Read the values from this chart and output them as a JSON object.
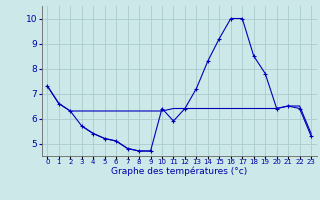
{
  "xlabel": "Graphe des températures (°c)",
  "background_color": "#cce8e8",
  "grid_color": "#aacccc",
  "line_color": "#0000bb",
  "x_hours": [
    0,
    1,
    2,
    3,
    4,
    5,
    6,
    7,
    8,
    9,
    10,
    11,
    12,
    13,
    14,
    15,
    16,
    17,
    18,
    19,
    20,
    21,
    22,
    23
  ],
  "line1": [
    7.3,
    6.6,
    6.3,
    5.7,
    5.4,
    5.2,
    5.1,
    4.8,
    4.7,
    4.7,
    6.4,
    5.9,
    6.4,
    7.2,
    8.3,
    9.2,
    10.0,
    10.0,
    8.5,
    7.8,
    6.4,
    6.5,
    6.4,
    5.3
  ],
  "line2": [
    7.3,
    6.6,
    6.3,
    6.3,
    6.3,
    6.3,
    6.3,
    6.3,
    6.3,
    6.3,
    6.3,
    6.4,
    6.4,
    6.4,
    6.4,
    6.4,
    6.4,
    6.4,
    6.4,
    6.4,
    6.4,
    6.5,
    6.5,
    5.4
  ],
  "line3_x": [
    3,
    4,
    5,
    6,
    7,
    8,
    9
  ],
  "line3_y": [
    5.7,
    5.4,
    5.2,
    5.1,
    4.8,
    4.7,
    4.7
  ],
  "ylim": [
    4.5,
    10.5
  ],
  "yticks": [
    5,
    6,
    7,
    8,
    9,
    10
  ],
  "xlim": [
    -0.5,
    23.5
  ]
}
